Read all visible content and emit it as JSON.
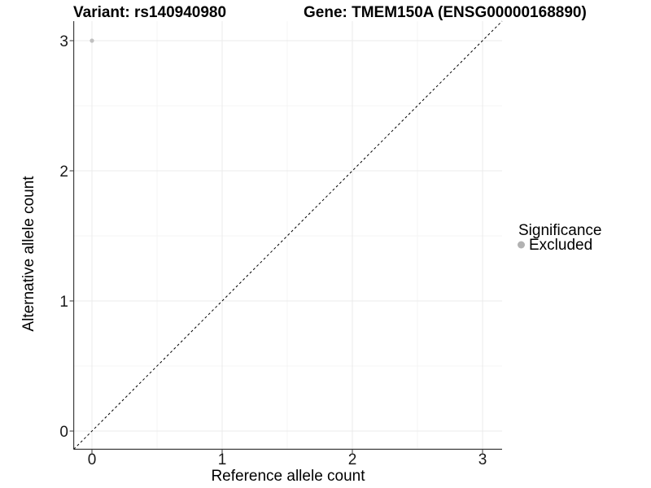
{
  "titles": {
    "variant": "Variant: rs140940980",
    "gene": "Gene: TMEM150A (ENSG00000168890)"
  },
  "axes": {
    "x": {
      "label": "Reference allele count",
      "tick_labels": [
        "0",
        "1",
        "2",
        "3"
      ]
    },
    "y": {
      "label": "Alternative allele count",
      "tick_labels": [
        "0",
        "1",
        "2",
        "3"
      ]
    }
  },
  "legend": {
    "title": "Significance",
    "items": [
      {
        "label": "Excluded",
        "color": "#b2b2b2"
      }
    ]
  },
  "colors": {
    "background": "#ffffff",
    "major_grid": "#ebebeb",
    "minor_grid": "#f4f4f4",
    "axis_line": "#404040",
    "tick": "#333333",
    "identity_line": "#000000",
    "point": "#c0c0c0"
  },
  "chart_data": {
    "type": "scatter",
    "title": "Variant: rs140940980",
    "subtitle": "Gene: TMEM150A (ENSG00000168890)",
    "xlabel": "Reference allele count",
    "ylabel": "Alternative allele count",
    "xlim": [
      -0.14,
      3.15
    ],
    "ylim": [
      -0.14,
      3.15
    ],
    "x_ticks": [
      0,
      1,
      2,
      3
    ],
    "y_ticks": [
      0,
      1,
      2,
      3
    ],
    "grid": "major and minor gridlines, light gray on white panel",
    "legend_position": "right",
    "series": [
      {
        "name": "Excluded",
        "color": "#c0c0c0",
        "points": [
          {
            "x": 0,
            "y": 3
          }
        ]
      }
    ],
    "reference_line": {
      "type": "identity y=x",
      "style": "dashed",
      "color": "#000000"
    }
  }
}
